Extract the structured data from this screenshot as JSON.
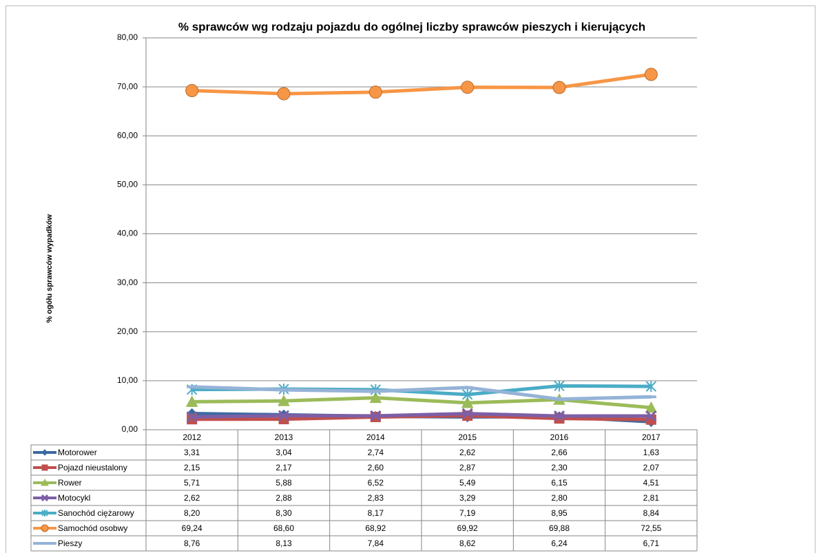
{
  "chart_data": {
    "type": "line",
    "title": "% sprawców wg rodzaju pojazdu do ogólnej liczby sprawców pieszych i kierujących",
    "y_label": "% ogółu  sprawców wypadków",
    "categories": [
      "2012",
      "2013",
      "2014",
      "2015",
      "2016",
      "2017"
    ],
    "ylim": [
      0,
      80
    ],
    "yticks": [
      {
        "value": 0,
        "label": "0,00"
      },
      {
        "value": 10,
        "label": "10,00"
      },
      {
        "value": 20,
        "label": "20,00"
      },
      {
        "value": 30,
        "label": "30,00"
      },
      {
        "value": 40,
        "label": "40,00"
      },
      {
        "value": 50,
        "label": "50,00"
      },
      {
        "value": 60,
        "label": "60,00"
      },
      {
        "value": 70,
        "label": "70,00"
      },
      {
        "value": 80,
        "label": "80,00"
      }
    ],
    "grid": true,
    "series": [
      {
        "name": "Motorower",
        "color": "#3b6aa3",
        "marker": "diamond",
        "values": [
          3.31,
          3.04,
          2.74,
          2.62,
          2.66,
          1.63
        ],
        "value_labels": [
          "3,31",
          "3,04",
          "2,74",
          "2,62",
          "2,66",
          "1,63"
        ]
      },
      {
        "name": "Pojazd nieustalony",
        "color": "#c0504d",
        "marker": "square",
        "values": [
          2.15,
          2.17,
          2.6,
          2.87,
          2.3,
          2.07
        ],
        "value_labels": [
          "2,15",
          "2,17",
          "2,60",
          "2,87",
          "2,30",
          "2,07"
        ]
      },
      {
        "name": "Rower",
        "color": "#9bbb59",
        "marker": "triangle",
        "values": [
          5.71,
          5.88,
          6.52,
          5.49,
          6.15,
          4.51
        ],
        "value_labels": [
          "5,71",
          "5,88",
          "6,52",
          "5,49",
          "6,15",
          "4,51"
        ]
      },
      {
        "name": "Motocykl",
        "color": "#7d5fa6",
        "marker": "cross",
        "values": [
          2.62,
          2.88,
          2.83,
          3.29,
          2.8,
          2.81
        ],
        "value_labels": [
          "2,62",
          "2,88",
          "2,83",
          "3,29",
          "2,80",
          "2,81"
        ]
      },
      {
        "name": "Sanochód ciężarowy",
        "color": "#4bacc6",
        "marker": "star",
        "values": [
          8.2,
          8.3,
          8.17,
          7.19,
          8.95,
          8.84
        ],
        "value_labels": [
          "8,20",
          "8,30",
          "8,17",
          "7,19",
          "8,95",
          "8,84"
        ]
      },
      {
        "name": "Samochód osobwy",
        "color": "#f79646",
        "marker": "circle",
        "values": [
          69.24,
          68.6,
          68.92,
          69.92,
          69.88,
          72.55
        ],
        "value_labels": [
          "69,24",
          "68,60",
          "68,92",
          "69,92",
          "69,88",
          "72,55"
        ]
      },
      {
        "name": "Pieszy",
        "color": "#95b3d7",
        "marker": "dash",
        "values": [
          8.76,
          8.13,
          7.84,
          8.62,
          6.24,
          6.71
        ],
        "value_labels": [
          "8,76",
          "8,13",
          "7,84",
          "8,62",
          "6,24",
          "6,71"
        ]
      }
    ]
  }
}
